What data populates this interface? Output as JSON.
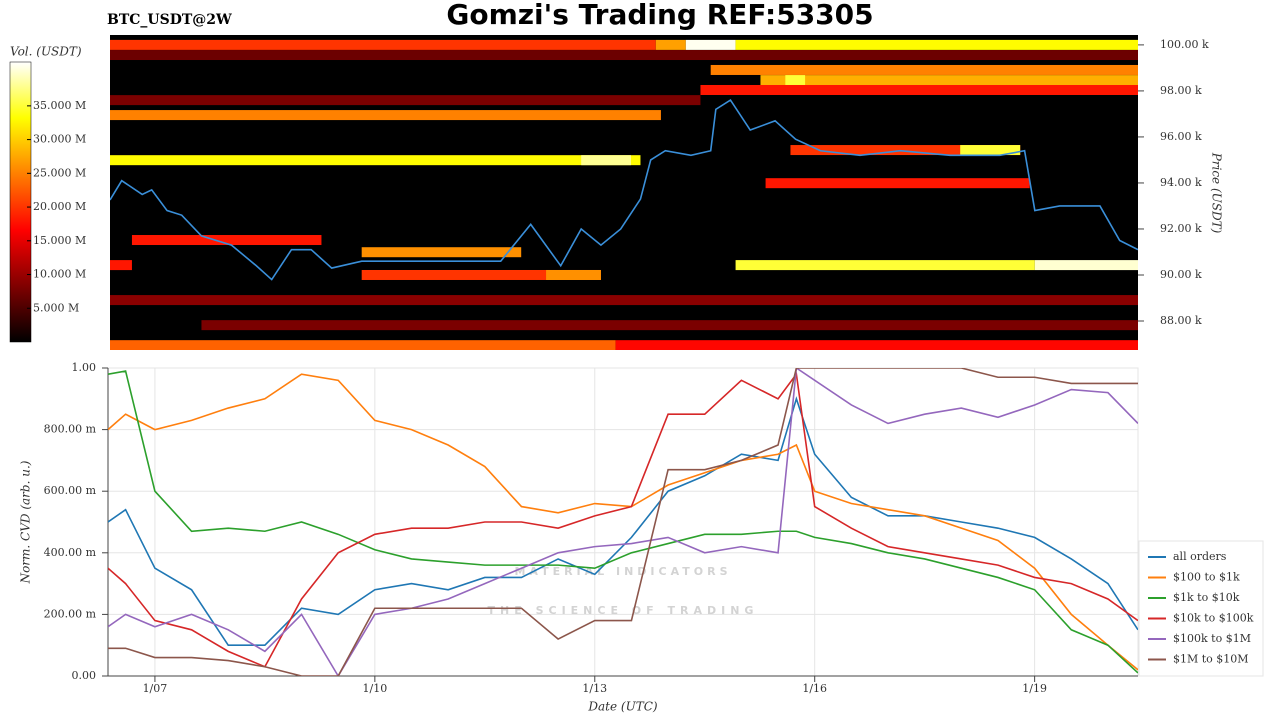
{
  "chart_data": [
    {
      "type": "heatmap",
      "title": "Gomzi's Trading REF:53305",
      "subtitle": "BTC_USDT@2W",
      "ylabel": "Price (USDT)",
      "colorbar_label": "Vol. (USDT)",
      "xlim": [
        6.36,
        20.41
      ],
      "ylim": [
        86740,
        100430
      ],
      "yticks": [
        {
          "value": 88000,
          "label": "88.00 k"
        },
        {
          "value": 90000,
          "label": "90.00 k"
        },
        {
          "value": 92000,
          "label": "92.00 k"
        },
        {
          "value": 94000,
          "label": "94.00 k"
        },
        {
          "value": 96000,
          "label": "96.00 k"
        },
        {
          "value": 98000,
          "label": "98.00 k"
        },
        {
          "value": 100000,
          "label": "100.00 k"
        }
      ],
      "colorlim": [
        0,
        41500000
      ],
      "colorticks": [
        {
          "value": 5000000,
          "label": "5.000 M"
        },
        {
          "value": 10000000,
          "label": "10.000 M"
        },
        {
          "value": 15000000,
          "label": "15.000 M"
        },
        {
          "value": 20000000,
          "label": "20.000 M"
        },
        {
          "value": 25000000,
          "label": "25.000 M"
        },
        {
          "value": 30000000,
          "label": "30.000 M"
        },
        {
          "value": 35000000,
          "label": "35.000 M"
        }
      ],
      "cells": {
        "price": [
          99560,
          97600,
          88910,
          87820,
          100000,
          100000,
          100000,
          100000,
          98910,
          98470,
          98470,
          98040,
          96950,
          94990,
          94990,
          95430,
          95430,
          93990,
          91520,
          90990,
          90430,
          90430,
          90430,
          90000,
          90000,
          86950,
          86950
        ],
        "start": [
          6.36,
          6.36,
          6.36,
          7.61,
          6.36,
          13.82,
          14.23,
          14.91,
          14.57,
          15.25,
          15.59,
          14.43,
          6.36,
          6.36,
          12.8,
          15.66,
          17.98,
          15.32,
          6.66,
          9.8,
          14.91,
          19.0,
          6.36,
          9.8,
          12.32,
          6.36,
          13.27
        ],
        "end": [
          20.41,
          14.43,
          20.41,
          20.41,
          13.82,
          14.23,
          14.91,
          20.41,
          20.41,
          20.41,
          15.86,
          20.41,
          13.89,
          13.61,
          13.48,
          18.8,
          18.8,
          18.93,
          9.25,
          11.98,
          19.0,
          20.41,
          6.66,
          13.07,
          13.07,
          13.27,
          20.41
        ],
        "volume": [
          7000000,
          8000000,
          9000000,
          8000000,
          20000000,
          27000000,
          41000000,
          33000000,
          25000000,
          28000000,
          35000000,
          18000000,
          25000000,
          33000000,
          38000000,
          20000000,
          35000000,
          18000000,
          18000000,
          26000000,
          35000000,
          40000000,
          18000000,
          20000000,
          26000000,
          23000000,
          17000000
        ]
      },
      "line": {
        "color": "#3a8fd9",
        "x": [
          6.36,
          6.52,
          6.8,
          6.93,
          7.14,
          7.34,
          7.61,
          8.02,
          8.36,
          8.57,
          8.84,
          9.11,
          9.39,
          9.8,
          10.34,
          11.02,
          11.7,
          12.11,
          12.52,
          12.8,
          13.07,
          13.34,
          13.61,
          13.75,
          13.95,
          14.3,
          14.57,
          14.64,
          14.84,
          15.11,
          15.45,
          15.73,
          16.07,
          16.61,
          17.16,
          17.84,
          18.52,
          18.86,
          19.0,
          19.34,
          19.89,
          20.16,
          20.41
        ],
        "values": [
          93260,
          94100,
          93500,
          93700,
          92800,
          92600,
          91700,
          91300,
          90400,
          89800,
          91100,
          91100,
          90300,
          90600,
          90600,
          90600,
          90600,
          92200,
          90400,
          92000,
          91300,
          92000,
          93300,
          95000,
          95400,
          95200,
          95400,
          97200,
          97600,
          96300,
          96700,
          95900,
          95400,
          95200,
          95400,
          95200,
          95200,
          95400,
          92800,
          93000,
          93000,
          91500,
          91100
        ]
      }
    },
    {
      "type": "line",
      "xlabel": "Date (UTC)",
      "ylabel": "Norm. CVD (arb. u.)",
      "xlim": [
        6.36,
        20.41
      ],
      "ylim": [
        0,
        1
      ],
      "grid": true,
      "legend": "right",
      "xticks": [
        {
          "value": 7,
          "label": "1/07"
        },
        {
          "value": 10,
          "label": "1/10"
        },
        {
          "value": 13,
          "label": "1/13"
        },
        {
          "value": 16,
          "label": "1/16"
        },
        {
          "value": 19,
          "label": "1/19"
        }
      ],
      "yticks": [
        {
          "value": 0,
          "label": "0.00"
        },
        {
          "value": 0.2,
          "label": "200.00 m"
        },
        {
          "value": 0.4,
          "label": "400.00 m"
        },
        {
          "value": 0.6,
          "label": "600.00 m"
        },
        {
          "value": 0.8,
          "label": "800.00 m"
        },
        {
          "value": 1,
          "label": "1.00"
        }
      ],
      "watermark": [
        "MATERIAL INDICATORS",
        "THE SCIENCE OF TRADING"
      ],
      "x": [
        6.36,
        6.6,
        7,
        7.5,
        8,
        8.5,
        9,
        9.5,
        10,
        10.5,
        11,
        11.5,
        12,
        12.5,
        13,
        13.5,
        14,
        14.5,
        15,
        15.5,
        15.75,
        16,
        16.5,
        17,
        17.5,
        18,
        18.5,
        19,
        19.5,
        20,
        20.41
      ],
      "series": [
        {
          "name": "all orders",
          "color": "#1f77b4",
          "values": [
            0.5,
            0.54,
            0.35,
            0.28,
            0.1,
            0.1,
            0.22,
            0.2,
            0.28,
            0.3,
            0.28,
            0.32,
            0.32,
            0.38,
            0.33,
            0.45,
            0.6,
            0.65,
            0.72,
            0.7,
            0.9,
            0.72,
            0.58,
            0.52,
            0.52,
            0.5,
            0.48,
            0.45,
            0.38,
            0.3,
            0.15
          ]
        },
        {
          "name": "$100 to $1k",
          "color": "#ff7f0e",
          "values": [
            0.8,
            0.85,
            0.8,
            0.83,
            0.87,
            0.9,
            0.98,
            0.96,
            0.83,
            0.8,
            0.75,
            0.68,
            0.55,
            0.53,
            0.56,
            0.55,
            0.62,
            0.66,
            0.7,
            0.72,
            0.75,
            0.6,
            0.56,
            0.54,
            0.52,
            0.48,
            0.44,
            0.35,
            0.2,
            0.1,
            0.02
          ]
        },
        {
          "name": "$1k to $10k",
          "color": "#2ca02c",
          "values": [
            0.98,
            0.99,
            0.6,
            0.47,
            0.48,
            0.47,
            0.5,
            0.46,
            0.41,
            0.38,
            0.37,
            0.36,
            0.36,
            0.36,
            0.35,
            0.4,
            0.43,
            0.46,
            0.46,
            0.47,
            0.47,
            0.45,
            0.43,
            0.4,
            0.38,
            0.35,
            0.32,
            0.28,
            0.15,
            0.1,
            0.01
          ]
        },
        {
          "name": "$10k to $100k",
          "color": "#d62728",
          "values": [
            0.35,
            0.3,
            0.18,
            0.15,
            0.08,
            0.03,
            0.25,
            0.4,
            0.46,
            0.48,
            0.48,
            0.5,
            0.5,
            0.48,
            0.52,
            0.55,
            0.85,
            0.85,
            0.96,
            0.9,
            0.98,
            0.55,
            0.48,
            0.42,
            0.4,
            0.38,
            0.36,
            0.32,
            0.3,
            0.25,
            0.18
          ]
        },
        {
          "name": "$100k to $1M",
          "color": "#9467bd",
          "values": [
            0.16,
            0.2,
            0.16,
            0.2,
            0.15,
            0.08,
            0.2,
            0.0,
            0.2,
            0.22,
            0.25,
            0.3,
            0.35,
            0.4,
            0.42,
            0.43,
            0.45,
            0.4,
            0.42,
            0.4,
            1.0,
            0.96,
            0.88,
            0.82,
            0.85,
            0.87,
            0.84,
            0.88,
            0.93,
            0.92,
            0.82
          ]
        },
        {
          "name": "$1M to $10M",
          "color": "#8c564b",
          "values": [
            0.09,
            0.09,
            0.06,
            0.06,
            0.05,
            0.03,
            0.0,
            0.0,
            0.22,
            0.22,
            0.22,
            0.22,
            0.22,
            0.12,
            0.18,
            0.18,
            0.67,
            0.67,
            0.7,
            0.75,
            1.0,
            1.0,
            1.0,
            1.0,
            1.0,
            1.0,
            0.97,
            0.97,
            0.95,
            0.95,
            0.95
          ]
        }
      ]
    }
  ]
}
